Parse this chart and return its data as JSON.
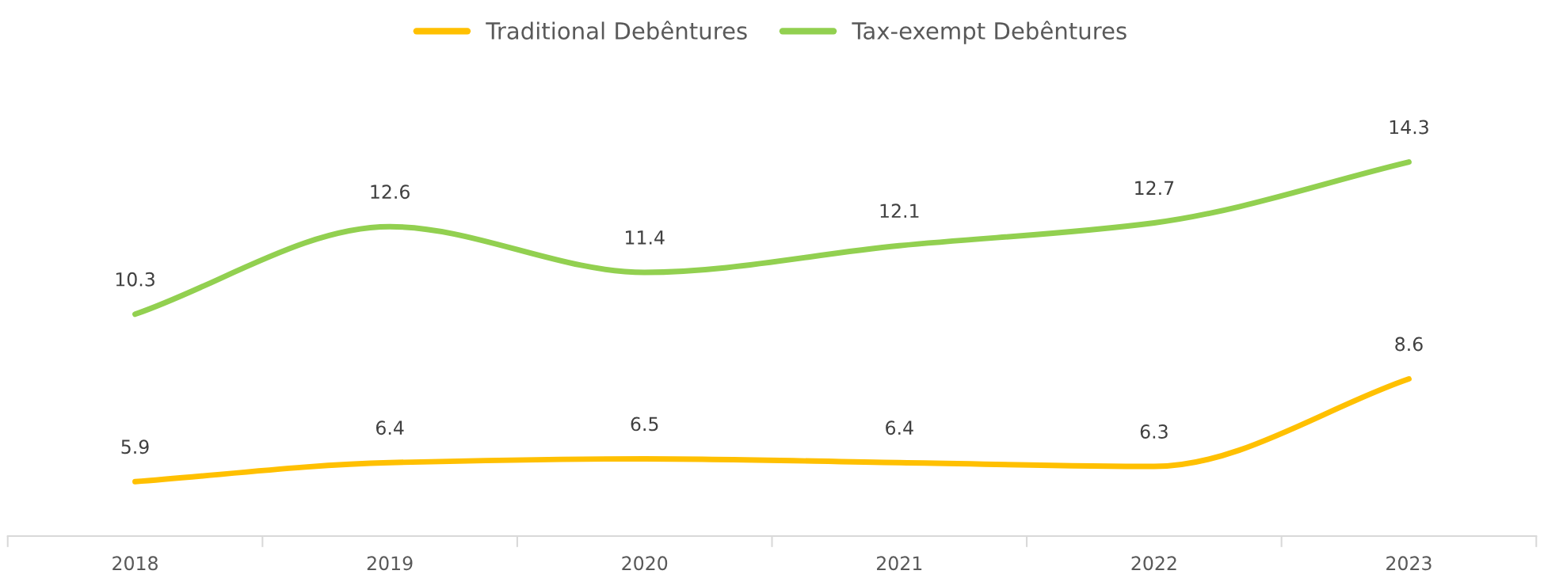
{
  "chart_data": {
    "type": "line",
    "categories": [
      "2018",
      "2019",
      "2020",
      "2021",
      "2022",
      "2023"
    ],
    "series": [
      {
        "name": "Traditional Debêntures",
        "color": "#ffc000",
        "values": [
          5.9,
          6.4,
          6.5,
          6.4,
          6.3,
          8.6
        ]
      },
      {
        "name": "Tax-exempt Debêntures",
        "color": "#92d050",
        "values": [
          10.3,
          12.6,
          11.4,
          12.1,
          12.7,
          14.3
        ]
      }
    ],
    "data_labels": true,
    "legend": "top",
    "grid": false,
    "marker": "none",
    "line_style": "solid"
  }
}
